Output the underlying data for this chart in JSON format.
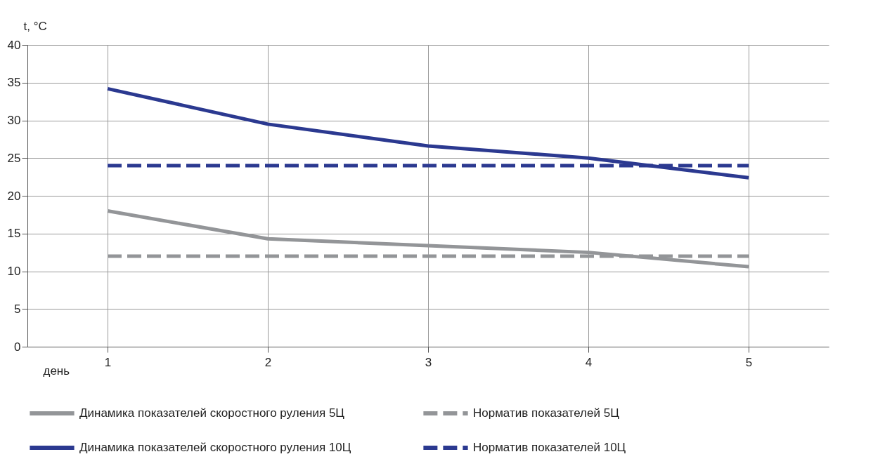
{
  "chart_data": {
    "type": "line",
    "xlabel": "день",
    "ylabel": "t, °C",
    "x": [
      1,
      2,
      3,
      4,
      5
    ],
    "xlim": [
      0.5,
      5.5
    ],
    "xticks": [
      1,
      2,
      3,
      4,
      5
    ],
    "ylim": [
      0,
      40
    ],
    "yticks": [
      0,
      5,
      10,
      15,
      20,
      25,
      30,
      35,
      40
    ],
    "grid": true,
    "legend": "bottom",
    "marker": "none",
    "series": [
      {
        "name": "Динамика показателей скоростного руления 5Ц",
        "color": "#939598",
        "line_style": "solid",
        "values": [
          18.0,
          14.3,
          13.4,
          12.5,
          10.6
        ]
      },
      {
        "name": "Норматив показателей 5Ц",
        "color": "#939598",
        "line_style": "dashed",
        "values": [
          12,
          12,
          12,
          12,
          12
        ]
      },
      {
        "name": "Динамика показателей скоростного руления 10Ц",
        "color": "#2b3990",
        "line_style": "solid",
        "values": [
          34.2,
          29.5,
          26.6,
          25.0,
          22.4
        ]
      },
      {
        "name": "Норматив показателей 10Ц",
        "color": "#2b3990",
        "line_style": "dashed",
        "values": [
          24,
          24,
          24,
          24,
          24
        ]
      }
    ]
  }
}
